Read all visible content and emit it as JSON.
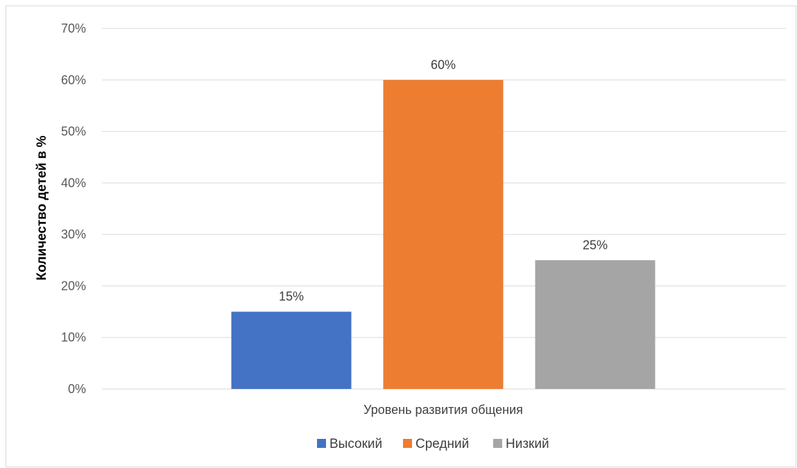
{
  "chart_data": {
    "type": "bar",
    "categories": [
      "Уровень развития общения"
    ],
    "series": [
      {
        "name": "Высокий",
        "values": [
          15
        ],
        "color": "#4472C4"
      },
      {
        "name": "Средний",
        "values": [
          60
        ],
        "color": "#ED7D31"
      },
      {
        "name": "Низкий",
        "values": [
          25
        ],
        "color": "#A5A5A5"
      }
    ],
    "data_labels": [
      "15%",
      "60%",
      "25%"
    ],
    "ylabel": "Количество детей в %",
    "xlabel": "Уровень развития общения",
    "ylim": [
      0,
      70
    ],
    "yticks": [
      "0%",
      "10%",
      "20%",
      "30%",
      "40%",
      "50%",
      "60%",
      "70%"
    ],
    "grid": true,
    "legend_position": "bottom"
  }
}
